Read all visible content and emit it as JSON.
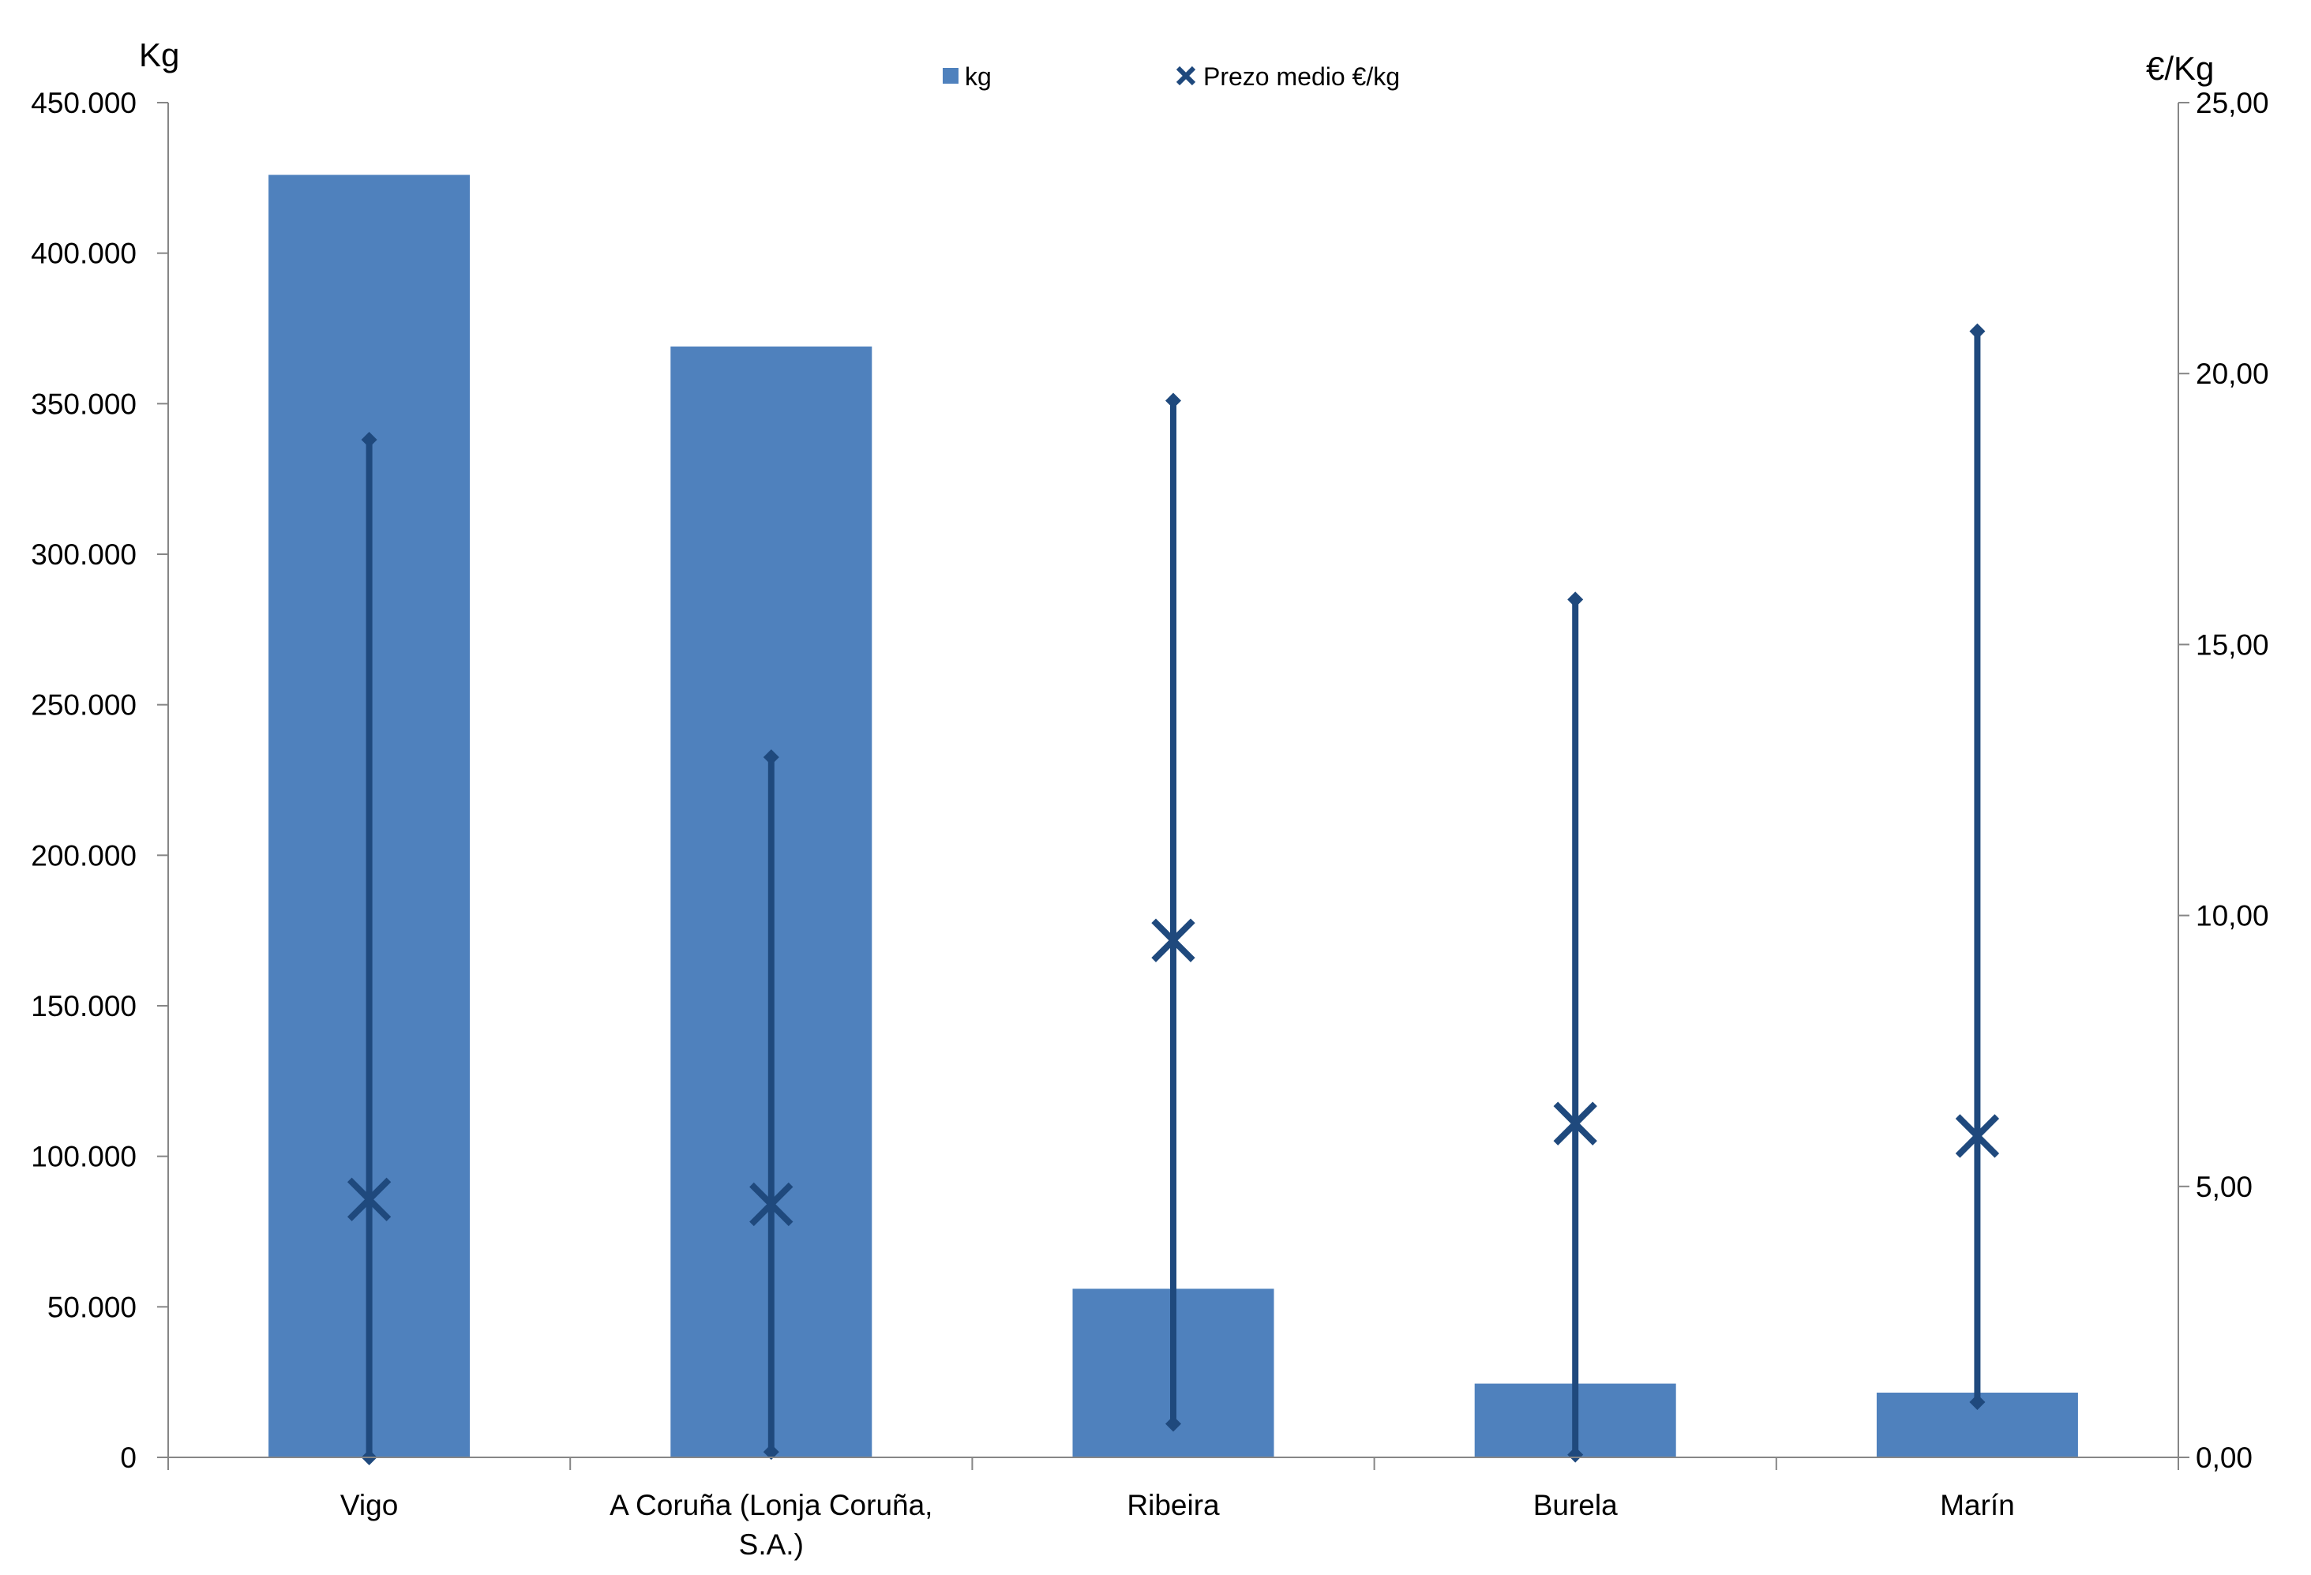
{
  "chart_data": {
    "type": "bar",
    "categories": [
      "Vigo",
      "A Coruña (Lonja Coruña, S.A.)",
      "Ribeira",
      "Burela",
      "Marín"
    ],
    "category_lines": [
      [
        "Vigo"
      ],
      [
        "A Coruña (Lonja Coruña,",
        "S.A.)"
      ],
      [
        "Ribeira"
      ],
      [
        "Burela"
      ],
      [
        "Marín"
      ]
    ],
    "series": [
      {
        "name": "kg",
        "type": "bar",
        "axis": "left",
        "values": [
          426000,
          369000,
          56000,
          24500,
          21500
        ],
        "color": "#4F81BD"
      },
      {
        "name": "Prezo medio €/kg",
        "type": "scatter",
        "axis": "right",
        "marker": "x",
        "values": [
          4.76,
          4.67,
          9.54,
          6.16,
          5.93
        ],
        "color": "#1F497D"
      }
    ],
    "range_series": {
      "axis": "right",
      "min": [
        0.0,
        0.1,
        0.62,
        0.05,
        1.02
      ],
      "max": [
        18.78,
        12.92,
        19.5,
        15.83,
        20.78
      ],
      "color": "#1F497D"
    },
    "y_left": {
      "label": "Kg",
      "min": 0,
      "max": 450000,
      "ticks": [
        "0",
        "50.000",
        "100.000",
        "150.000",
        "200.000",
        "250.000",
        "300.000",
        "350.000",
        "400.000",
        "450.000"
      ]
    },
    "y_right": {
      "label": "€/Kg",
      "min": 0,
      "max": 25,
      "ticks": [
        "0,00",
        "5,00",
        "10,00",
        "15,00",
        "20,00",
        "25,00"
      ]
    },
    "legend": {
      "placement": "top-center",
      "items": [
        "kg",
        "Prezo medio €/kg"
      ]
    },
    "grid": false
  }
}
